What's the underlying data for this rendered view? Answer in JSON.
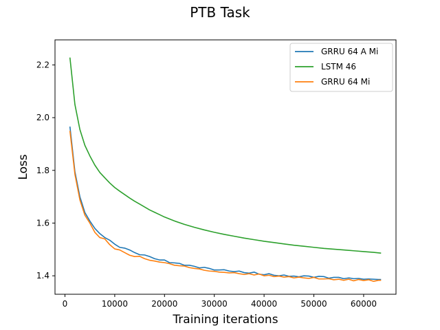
{
  "chart_data": {
    "type": "line",
    "title": "PTB Task",
    "xlabel": "Training iterations",
    "ylabel": "Loss",
    "xlim": [
      -2000,
      66500
    ],
    "ylim": [
      1.33,
      2.295
    ],
    "xticks": [
      0,
      10000,
      20000,
      30000,
      40000,
      50000,
      60000
    ],
    "xtick_labels": [
      "0",
      "10000",
      "20000",
      "30000",
      "40000",
      "50000",
      "60000"
    ],
    "yticks": [
      1.4,
      1.6,
      1.8,
      2.0,
      2.2
    ],
    "ytick_labels": [
      "1.4",
      "1.6",
      "1.8",
      "2.0",
      "2.2"
    ],
    "grid": false,
    "legend_position": "top-right",
    "series": [
      {
        "name": "GRRU 64 A Mi",
        "color": "#1f77b4",
        "x": [
          1000,
          2000,
          3000,
          4000,
          5000,
          6000,
          7000,
          8000,
          9000,
          10000,
          11000,
          12000,
          13000,
          14000,
          15000,
          16000,
          17000,
          18000,
          19000,
          20000,
          21000,
          22000,
          23000,
          24000,
          25000,
          26000,
          27000,
          28000,
          29000,
          30000,
          31000,
          32000,
          33000,
          34000,
          35000,
          36000,
          37000,
          38000,
          39000,
          40000,
          41000,
          42000,
          43000,
          44000,
          45000,
          46000,
          47000,
          48000,
          49000,
          50000,
          51000,
          52000,
          53000,
          54000,
          55000,
          56000,
          57000,
          58000,
          59000,
          60000,
          61000,
          62000,
          63000,
          63500
        ],
        "values": [
          1.966,
          1.795,
          1.7,
          1.64,
          1.608,
          1.58,
          1.56,
          1.545,
          1.535,
          1.52,
          1.508,
          1.505,
          1.498,
          1.488,
          1.48,
          1.479,
          1.473,
          1.465,
          1.46,
          1.46,
          1.45,
          1.449,
          1.447,
          1.44,
          1.44,
          1.436,
          1.43,
          1.432,
          1.428,
          1.422,
          1.422,
          1.423,
          1.418,
          1.416,
          1.418,
          1.412,
          1.41,
          1.414,
          1.406,
          1.404,
          1.408,
          1.402,
          1.4,
          1.403,
          1.398,
          1.399,
          1.396,
          1.4,
          1.399,
          1.394,
          1.398,
          1.397,
          1.391,
          1.394,
          1.394,
          1.389,
          1.392,
          1.389,
          1.39,
          1.387,
          1.388,
          1.387,
          1.386,
          1.386
        ]
      },
      {
        "name": "LSTM 46",
        "color": "#2ca02c",
        "x": [
          1000,
          2000,
          3000,
          4000,
          5000,
          6000,
          7000,
          8000,
          9000,
          10000,
          11000,
          12000,
          13000,
          14000,
          15000,
          16000,
          17000,
          18000,
          19000,
          20000,
          22000,
          24000,
          26000,
          28000,
          30000,
          32000,
          34000,
          36000,
          38000,
          40000,
          42000,
          44000,
          46000,
          48000,
          50000,
          52000,
          54000,
          56000,
          58000,
          60000,
          62000,
          63500
        ],
        "values": [
          2.228,
          2.05,
          1.955,
          1.895,
          1.855,
          1.82,
          1.792,
          1.772,
          1.752,
          1.735,
          1.721,
          1.708,
          1.695,
          1.683,
          1.672,
          1.661,
          1.65,
          1.641,
          1.632,
          1.623,
          1.608,
          1.595,
          1.584,
          1.574,
          1.565,
          1.557,
          1.55,
          1.543,
          1.537,
          1.531,
          1.526,
          1.521,
          1.516,
          1.512,
          1.508,
          1.504,
          1.501,
          1.498,
          1.495,
          1.492,
          1.489,
          1.486
        ]
      },
      {
        "name": "GRRU 64 Mi",
        "color": "#ff7f0e",
        "x": [
          1000,
          2000,
          3000,
          4000,
          5000,
          6000,
          7000,
          8000,
          9000,
          10000,
          11000,
          12000,
          13000,
          14000,
          15000,
          16000,
          17000,
          18000,
          19000,
          20000,
          21000,
          22000,
          23000,
          24000,
          25000,
          26000,
          27000,
          28000,
          29000,
          30000,
          31000,
          32000,
          33000,
          34000,
          35000,
          36000,
          37000,
          38000,
          39000,
          40000,
          41000,
          42000,
          43000,
          44000,
          45000,
          46000,
          47000,
          48000,
          49000,
          50000,
          51000,
          52000,
          53000,
          54000,
          55000,
          56000,
          57000,
          58000,
          59000,
          60000,
          61000,
          62000,
          63000,
          63500
        ],
        "values": [
          1.95,
          1.785,
          1.688,
          1.63,
          1.6,
          1.565,
          1.545,
          1.54,
          1.518,
          1.502,
          1.498,
          1.488,
          1.478,
          1.473,
          1.474,
          1.465,
          1.459,
          1.456,
          1.452,
          1.45,
          1.446,
          1.44,
          1.438,
          1.437,
          1.431,
          1.428,
          1.426,
          1.421,
          1.418,
          1.417,
          1.414,
          1.413,
          1.411,
          1.412,
          1.408,
          1.405,
          1.408,
          1.403,
          1.407,
          1.4,
          1.402,
          1.397,
          1.399,
          1.395,
          1.397,
          1.392,
          1.395,
          1.392,
          1.39,
          1.394,
          1.388,
          1.388,
          1.389,
          1.385,
          1.387,
          1.383,
          1.387,
          1.381,
          1.386,
          1.382,
          1.385,
          1.379,
          1.383,
          1.383
        ]
      }
    ]
  }
}
